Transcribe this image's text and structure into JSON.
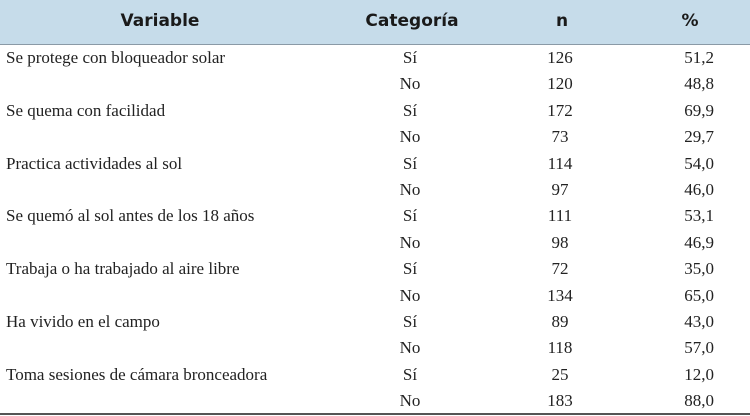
{
  "table": {
    "header": [
      "Variable",
      "Categoría",
      "n",
      "%"
    ],
    "groups": [
      {
        "variable": "Se protege con bloqueador solar",
        "rows": [
          [
            "Sí",
            "126",
            "51,2"
          ],
          [
            "No",
            "120",
            "48,8"
          ]
        ]
      },
      {
        "variable": "Se quema con facilidad",
        "rows": [
          [
            "Sí",
            "172",
            "69,9"
          ],
          [
            "No",
            "73",
            "29,7"
          ]
        ]
      },
      {
        "variable": "Practica actividades al sol",
        "rows": [
          [
            "Sí",
            "114",
            "54,0"
          ],
          [
            "No",
            "97",
            "46,0"
          ]
        ]
      },
      {
        "variable": "Se quemó al sol antes de los 18 años",
        "rows": [
          [
            "Sí",
            "111",
            "53,1"
          ],
          [
            "No",
            "98",
            "46,9"
          ]
        ]
      },
      {
        "variable": "Trabaja o ha trabajado al aire libre",
        "rows": [
          [
            "Sí",
            "72",
            "35,0"
          ],
          [
            "No",
            "134",
            "65,0"
          ]
        ]
      },
      {
        "variable": "Ha vivido en el campo",
        "rows": [
          [
            "Sí",
            "89",
            "43,0"
          ],
          [
            "No",
            "118",
            "57,0"
          ]
        ]
      },
      {
        "variable": "Toma sesiones de cámara bronceadora",
        "rows": [
          [
            "Sí",
            "25",
            "12,0"
          ],
          [
            "No",
            "183",
            "88,0"
          ]
        ]
      }
    ]
  }
}
